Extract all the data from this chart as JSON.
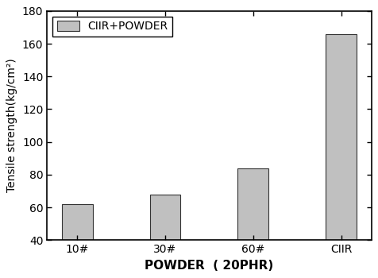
{
  "categories": [
    "10#",
    "30#",
    "60#",
    "CIIR"
  ],
  "values": [
    62,
    68,
    84,
    166
  ],
  "bar_color": "#c0c0c0",
  "bar_edgecolor": "#333333",
  "ylabel": "Tensile strength(kg/cm²)",
  "xlabel": "POWDER  ( 20PHR)",
  "ylim": [
    40,
    180
  ],
  "yticks": [
    40,
    60,
    80,
    100,
    120,
    140,
    160,
    180
  ],
  "legend_label": "CIIR+POWDER",
  "background_color": "#ffffff",
  "bar_width": 0.35,
  "label_fontsize": 10,
  "tick_fontsize": 10,
  "xlabel_fontsize": 11
}
